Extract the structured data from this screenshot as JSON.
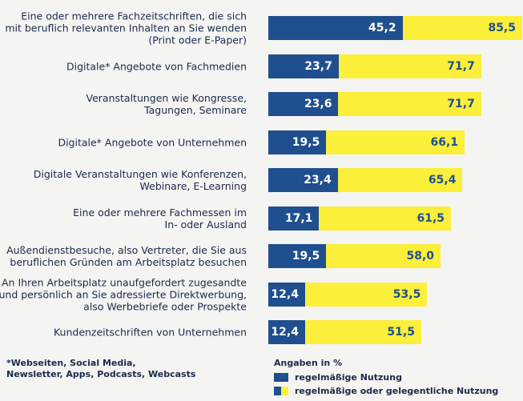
{
  "chart_data": {
    "type": "bar",
    "categories": [
      "Eine oder mehrere Fachzeitschriften, die sich\nmit beruflich relevanten Inhalten an Sie wenden\n(Print oder E-Paper)",
      "Digitale* Angebote von Fachmedien",
      "Veranstaltungen wie Kongresse,\nTagungen, Seminare",
      "Digitale* Angebote von Unternehmen",
      "Digitale Veranstaltungen wie Konferenzen,\nWebinare, E-Learning",
      "Eine oder mehrere Fachmessen im\nIn- oder Ausland",
      "Außendienstbesuche, also Vertreter, die Sie aus\nberuflichen Gründen am Arbeitsplatz besuchen",
      "An Ihren Arbeitsplatz unaufgefordert zugesandte\nund persönlich an Sie adressierte Direktwerbung,\nalso Werbebriefe oder Prospekte",
      "Kundenzeitschriften von Unternehmen"
    ],
    "series": [
      {
        "name": "regelmäßige Nutzung",
        "color": "#1f4f8f",
        "values": [
          45.2,
          23.7,
          23.6,
          19.5,
          23.4,
          17.1,
          19.5,
          12.4,
          12.4
        ],
        "value_labels": [
          "45,2",
          "23,7",
          "23,6",
          "19,5",
          "23,4",
          "17,1",
          "19,5",
          "12,4",
          "12,4"
        ]
      },
      {
        "name": "regelmäßige oder gelegentliche Nutzung",
        "color": "#fbef3a",
        "values": [
          85.5,
          71.7,
          71.7,
          66.1,
          65.4,
          61.5,
          58.0,
          53.5,
          51.5
        ],
        "value_labels": [
          "85,5",
          "71,7",
          "71,7",
          "66,1",
          "65,4",
          "61,5",
          "58,0",
          "53,5",
          "51,5"
        ]
      }
    ],
    "legend_title": "Angaben in %",
    "footnote": "*Webseiten, Social Media,\n  Newsletter, Apps, Podcasts, Webcasts"
  }
}
